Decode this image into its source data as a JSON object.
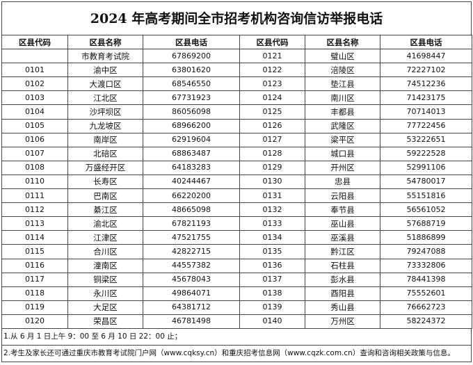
{
  "title": "2024 年高考期间全市招考机构咨询信访举报电话",
  "headers": {
    "code": "区县代码",
    "name": "区县名称",
    "phone": "区县电话"
  },
  "left_rows": [
    {
      "code": "",
      "name": "市教育考试院",
      "phone": "67869200"
    },
    {
      "code": "0101",
      "name": "渝中区",
      "phone": "63801620"
    },
    {
      "code": "0102",
      "name": "大渡口区",
      "phone": "68546550"
    },
    {
      "code": "0103",
      "name": "江北区",
      "phone": "67731923"
    },
    {
      "code": "0104",
      "name": "沙坪坝区",
      "phone": "86056098"
    },
    {
      "code": "0105",
      "name": "九龙坡区",
      "phone": "68966200"
    },
    {
      "code": "0106",
      "name": "南岸区",
      "phone": "62919604"
    },
    {
      "code": "0107",
      "name": "北碚区",
      "phone": "68863487"
    },
    {
      "code": "0108",
      "name": "万盛经开区",
      "phone": "64183283"
    },
    {
      "code": "0110",
      "name": "长寿区",
      "phone": "40244467"
    },
    {
      "code": "0111",
      "name": "巴南区",
      "phone": "66220200"
    },
    {
      "code": "0112",
      "name": "綦江区",
      "phone": "48665098"
    },
    {
      "code": "0113",
      "name": "渝北区",
      "phone": "67821193"
    },
    {
      "code": "0114",
      "name": "江津区",
      "phone": "47521755"
    },
    {
      "code": "0115",
      "name": "合川区",
      "phone": "42822715"
    },
    {
      "code": "0116",
      "name": "潼南区",
      "phone": "44557382"
    },
    {
      "code": "0117",
      "name": "铜梁区",
      "phone": "45678043"
    },
    {
      "code": "0118",
      "name": "永川区",
      "phone": "49864071"
    },
    {
      "code": "0119",
      "name": "大足区",
      "phone": "64381712"
    },
    {
      "code": "0120",
      "name": "荣昌区",
      "phone": "46781498"
    }
  ],
  "right_rows": [
    {
      "code": "0121",
      "name": "璧山区",
      "phone": "41698447"
    },
    {
      "code": "0122",
      "name": "涪陵区",
      "phone": "72227102"
    },
    {
      "code": "0123",
      "name": "垫江县",
      "phone": "74512236"
    },
    {
      "code": "0124",
      "name": "南川区",
      "phone": "71423175"
    },
    {
      "code": "0125",
      "name": "丰都县",
      "phone": "70714013"
    },
    {
      "code": "0126",
      "name": "武隆区",
      "phone": "77722456"
    },
    {
      "code": "0127",
      "name": "梁平区",
      "phone": "53222651"
    },
    {
      "code": "0128",
      "name": "城口县",
      "phone": "59222528"
    },
    {
      "code": "0129",
      "name": "开州区",
      "phone": "52991106"
    },
    {
      "code": "0130",
      "name": "忠县",
      "phone": "54780017"
    },
    {
      "code": "0131",
      "name": "云阳县",
      "phone": "55151816"
    },
    {
      "code": "0132",
      "name": "奉节县",
      "phone": "56561052"
    },
    {
      "code": "0133",
      "name": "巫山县",
      "phone": "57688719"
    },
    {
      "code": "0134",
      "name": "巫溪县",
      "phone": "51886899"
    },
    {
      "code": "0135",
      "name": "黔江区",
      "phone": "79247088"
    },
    {
      "code": "0136",
      "name": "石柱县",
      "phone": "73332806"
    },
    {
      "code": "0137",
      "name": "彭水县",
      "phone": "78441398"
    },
    {
      "code": "0138",
      "name": "酉阳县",
      "phone": "75552601"
    },
    {
      "code": "0139",
      "name": "秀山县",
      "phone": "76662723"
    },
    {
      "code": "0140",
      "name": "万州区",
      "phone": "58224372"
    }
  ],
  "notes": [
    "1.从 6 月 1 日上午 9：00 至 6 月 10 日 22：00 止；",
    "2.考生及家长还可通过重庆市教育考试院门户网（www.cqksy.cn）和重庆招考信息网（www.cqzk.com.cn）查询和咨询相关政策与信息。"
  ]
}
